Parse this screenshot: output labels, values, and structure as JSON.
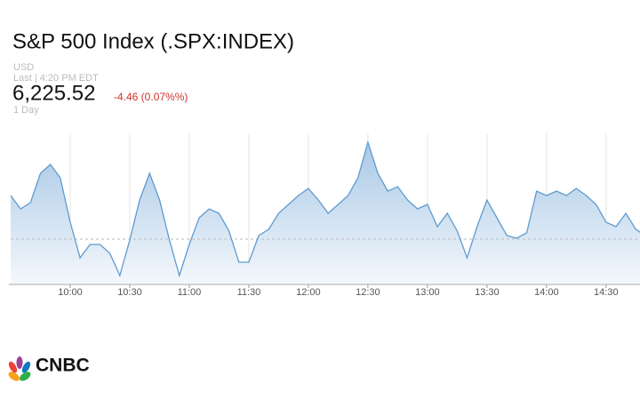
{
  "chart_data": {
    "type": "area",
    "title": "S&P 500 Index (.SPX:INDEX)",
    "currency": "USD",
    "last_label": "Last | 4:20 PM EDT",
    "price": "6,225.52",
    "change": "-4.46 (0.07%%)",
    "period": "1 Day",
    "logo": "CNBC",
    "color": "#5f9bcf",
    "x": [
      570,
      575,
      580,
      585,
      590,
      595,
      600,
      605,
      610,
      615,
      620,
      625,
      630,
      635,
      640,
      645,
      650,
      655,
      660,
      665,
      670,
      675,
      680,
      685,
      690,
      695,
      700,
      705,
      710,
      715,
      720,
      725,
      730,
      735,
      740,
      745,
      750,
      755,
      760,
      765,
      770,
      775,
      780,
      785,
      790,
      795,
      800,
      805,
      810,
      815,
      820,
      825,
      830,
      835,
      840,
      845,
      850,
      855,
      860,
      865,
      870,
      875,
      880,
      885,
      888
    ],
    "values": [
      6234,
      6231,
      6232.4,
      6239,
      6241,
      6238,
      6228,
      6220,
      6223,
      6223,
      6221,
      6216,
      6224,
      6233,
      6239,
      6233,
      6224,
      6216,
      6223,
      6229,
      6231,
      6230,
      6226,
      6219,
      6219,
      6225,
      6226.4,
      6230,
      6232,
      6234,
      6235.6,
      6233,
      6230,
      6232,
      6234,
      6238,
      6246,
      6239,
      6235,
      6236,
      6233,
      6231,
      6232,
      6227,
      6230,
      6226,
      6220,
      6227,
      6233,
      6229,
      6225,
      6224.4,
      6225.6,
      6235,
      6234,
      6235,
      6234,
      6235.6,
      6234,
      6232,
      6228,
      6227,
      6230,
      6226.4,
      6225.52
    ],
    "reference_line": 6224.2,
    "xlim": [
      570,
      888
    ],
    "ylim": [
      6214,
      6248
    ],
    "xticks": [
      {
        "value": 600,
        "label": "10:00"
      },
      {
        "value": 630,
        "label": "10:30"
      },
      {
        "value": 660,
        "label": "11:00"
      },
      {
        "value": 690,
        "label": "11:30"
      },
      {
        "value": 720,
        "label": "12:00"
      },
      {
        "value": 750,
        "label": "12:30"
      },
      {
        "value": 780,
        "label": "13:00"
      },
      {
        "value": 810,
        "label": "13:30"
      },
      {
        "value": 840,
        "label": "14:00"
      },
      {
        "value": 870,
        "label": "14:30"
      }
    ],
    "grid": true
  }
}
